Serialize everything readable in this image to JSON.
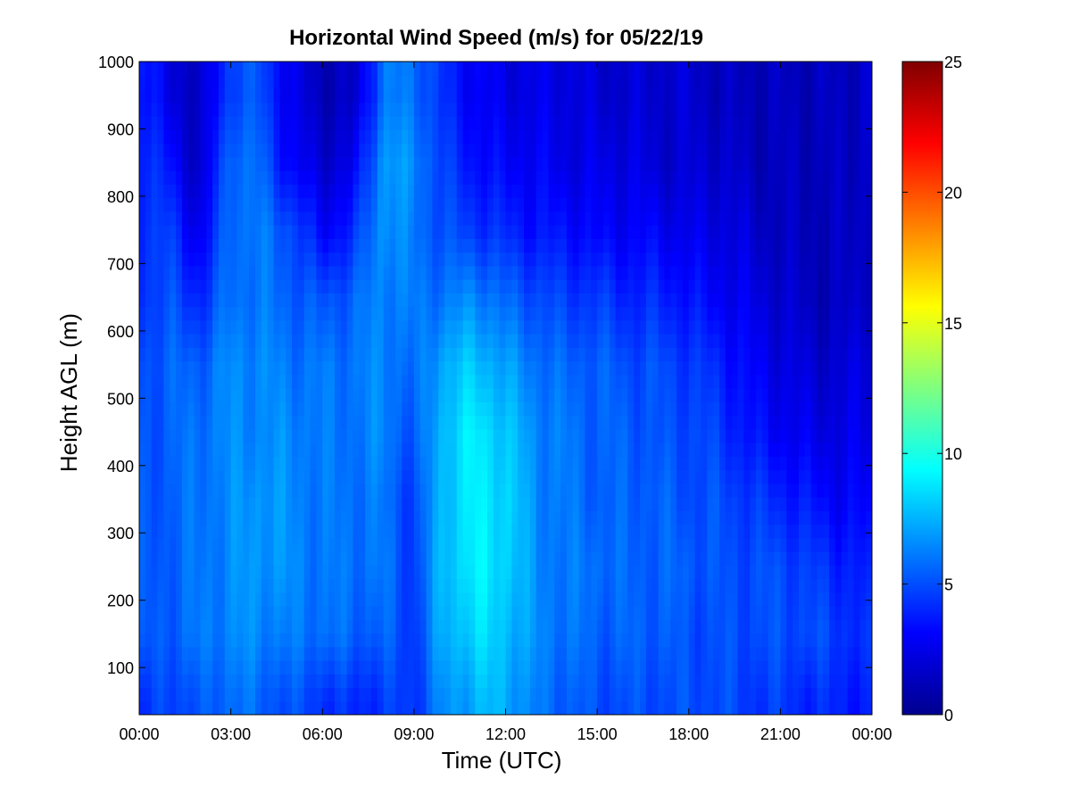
{
  "chart_data": {
    "type": "heatmap",
    "title": "Horizontal Wind Speed (m/s) for 05/22/19",
    "xlabel": "Time (UTC)",
    "ylabel": "Height AGL (m)",
    "x_range_hours": [
      0,
      24
    ],
    "ylim": [
      30,
      1000
    ],
    "x_ticks": [
      {
        "hour": 0,
        "label": "00:00"
      },
      {
        "hour": 3,
        "label": "03:00"
      },
      {
        "hour": 6,
        "label": "06:00"
      },
      {
        "hour": 9,
        "label": "09:00"
      },
      {
        "hour": 12,
        "label": "12:00"
      },
      {
        "hour": 15,
        "label": "15:00"
      },
      {
        "hour": 18,
        "label": "18:00"
      },
      {
        "hour": 21,
        "label": "21:00"
      },
      {
        "hour": 24,
        "label": "00:00"
      }
    ],
    "y_ticks": [
      100,
      200,
      300,
      400,
      500,
      600,
      700,
      800,
      900,
      1000
    ],
    "colorbar": {
      "colormap": "jet",
      "range": [
        0,
        25
      ],
      "ticks": [
        0,
        5,
        10,
        15,
        20,
        25
      ]
    },
    "grid": false,
    "heights_m": [
      50,
      150,
      250,
      350,
      450,
      550,
      650,
      750,
      850,
      950
    ],
    "times_hour": [
      0,
      1,
      2,
      3,
      4,
      5,
      6,
      7,
      8,
      9,
      10,
      11,
      12,
      13,
      14,
      15,
      16,
      17,
      18,
      19,
      20,
      21,
      22,
      23,
      24
    ],
    "speed_ms": [
      [
        4.0,
        5.0,
        5.0,
        6.0,
        5.5,
        5.0,
        4.5,
        4.0,
        4.5,
        4.5,
        6.5,
        7.5,
        7.5,
        6.0,
        5.5,
        5.0,
        5.0,
        5.0,
        5.0,
        5.0,
        4.5,
        4.5,
        4.0,
        4.0,
        3.5
      ],
      [
        5.0,
        5.5,
        6.0,
        6.5,
        6.5,
        6.0,
        6.0,
        5.5,
        5.5,
        4.5,
        7.5,
        8.5,
        8.0,
        6.5,
        6.0,
        5.5,
        5.5,
        5.5,
        5.0,
        5.0,
        5.0,
        5.0,
        5.0,
        4.5,
        4.0
      ],
      [
        5.0,
        5.5,
        6.0,
        6.5,
        7.0,
        6.5,
        6.0,
        6.0,
        6.0,
        4.5,
        8.0,
        9.0,
        8.5,
        6.5,
        6.0,
        6.0,
        5.5,
        5.5,
        5.5,
        5.0,
        5.0,
        5.0,
        4.5,
        4.0,
        3.5
      ],
      [
        5.0,
        5.5,
        6.0,
        6.5,
        7.0,
        6.5,
        6.0,
        6.0,
        6.0,
        4.5,
        8.0,
        9.0,
        8.5,
        6.5,
        6.0,
        5.5,
        5.5,
        5.5,
        5.0,
        5.0,
        4.5,
        4.0,
        3.5,
        3.0,
        3.0
      ],
      [
        5.0,
        5.5,
        6.0,
        6.5,
        6.5,
        6.5,
        6.0,
        6.0,
        6.5,
        5.0,
        8.0,
        9.0,
        8.0,
        6.5,
        6.0,
        5.5,
        5.5,
        5.0,
        5.0,
        4.5,
        3.5,
        3.0,
        2.5,
        2.5,
        2.5
      ],
      [
        5.0,
        5.5,
        5.5,
        6.5,
        6.5,
        6.0,
        6.0,
        6.0,
        6.5,
        5.5,
        7.5,
        8.0,
        7.0,
        6.0,
        5.5,
        5.5,
        5.0,
        5.0,
        4.5,
        4.0,
        3.0,
        2.5,
        2.0,
        2.0,
        2.5
      ],
      [
        4.5,
        5.0,
        4.0,
        6.0,
        6.0,
        5.5,
        5.0,
        5.5,
        6.5,
        6.0,
        6.0,
        6.5,
        5.5,
        5.0,
        4.5,
        4.5,
        4.0,
        4.0,
        3.5,
        3.0,
        2.5,
        2.0,
        1.5,
        1.5,
        2.0
      ],
      [
        4.5,
        4.5,
        2.5,
        6.0,
        6.0,
        5.0,
        3.0,
        4.0,
        7.0,
        6.0,
        5.0,
        4.5,
        4.0,
        3.5,
        3.5,
        3.0,
        3.0,
        3.0,
        2.5,
        2.5,
        2.0,
        1.5,
        1.5,
        1.5,
        2.0
      ],
      [
        4.5,
        3.5,
        1.5,
        6.0,
        5.5,
        3.0,
        2.0,
        2.5,
        7.0,
        6.5,
        4.5,
        3.5,
        3.0,
        3.0,
        2.5,
        2.5,
        2.5,
        2.0,
        2.0,
        2.0,
        1.5,
        1.5,
        1.5,
        1.5,
        2.0
      ],
      [
        4.0,
        2.5,
        1.5,
        5.0,
        5.0,
        2.5,
        1.5,
        1.5,
        6.0,
        6.0,
        4.0,
        3.0,
        2.5,
        2.5,
        2.5,
        2.0,
        2.0,
        2.0,
        2.0,
        1.5,
        1.5,
        1.5,
        1.5,
        1.5,
        2.0
      ]
    ]
  }
}
